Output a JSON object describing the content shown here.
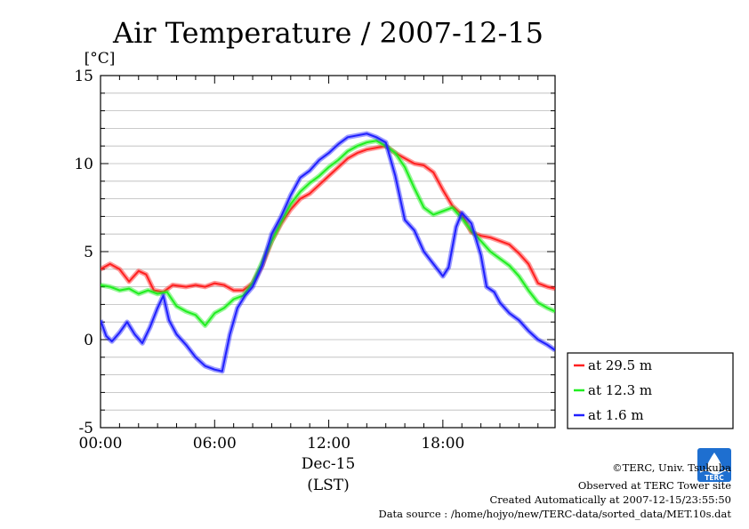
{
  "title": "Air Temperature / 2007-12-15",
  "unit_label": "[°C]",
  "x_date_label": "Dec-15",
  "x_axis_label": "(LST)",
  "logo_text": "TERC",
  "footer": {
    "copyright": "©TERC, Univ. Tsukuba",
    "observed": "Observed at TERC Tower site",
    "created": "Created Automatically at 2007-12-15/23:55:50",
    "source": "Data source : /home/hojyo/new/TERC-data/sorted_data/MET.10s.dat"
  },
  "colors": {
    "red": "#ff2020",
    "green": "#20ee20",
    "blue": "#2020ff",
    "logo": "#1e6fd0"
  },
  "chart_data": {
    "type": "line",
    "title": "Air Temperature / 2007-12-15",
    "ylabel": "[°C]",
    "xlabel": "(LST)",
    "ylim": [
      -5,
      15
    ],
    "xlim": [
      0,
      23.9
    ],
    "grid": true,
    "legend_position": "right, outside plot",
    "x_ticks": [
      {
        "value": 0,
        "label": "00:00"
      },
      {
        "value": 6,
        "label": "06:00"
      },
      {
        "value": 12,
        "label": "12:00"
      },
      {
        "value": 18,
        "label": "18:00"
      }
    ],
    "y_ticks": [
      {
        "value": -5,
        "label": "-5"
      },
      {
        "value": 0,
        "label": "0"
      },
      {
        "value": 5,
        "label": "5"
      },
      {
        "value": 10,
        "label": "10"
      },
      {
        "value": 15,
        "label": "15"
      }
    ],
    "series": [
      {
        "name": "at 29.5 m",
        "color": "#ff2020",
        "points": [
          [
            0,
            4.0
          ],
          [
            0.5,
            4.3
          ],
          [
            1.0,
            4.0
          ],
          [
            1.5,
            3.3
          ],
          [
            2.0,
            3.9
          ],
          [
            2.4,
            3.7
          ],
          [
            2.8,
            2.8
          ],
          [
            3.3,
            2.7
          ],
          [
            3.8,
            3.1
          ],
          [
            4.5,
            3.0
          ],
          [
            5.0,
            3.1
          ],
          [
            5.5,
            3.0
          ],
          [
            6.0,
            3.2
          ],
          [
            6.5,
            3.1
          ],
          [
            7.0,
            2.8
          ],
          [
            7.5,
            2.8
          ],
          [
            8.0,
            3.2
          ],
          [
            8.5,
            4.2
          ],
          [
            9.0,
            5.6
          ],
          [
            9.5,
            6.6
          ],
          [
            10.0,
            7.4
          ],
          [
            10.5,
            8.0
          ],
          [
            11.0,
            8.3
          ],
          [
            11.5,
            8.8
          ],
          [
            12.0,
            9.3
          ],
          [
            12.5,
            9.8
          ],
          [
            13.0,
            10.3
          ],
          [
            13.5,
            10.6
          ],
          [
            14.0,
            10.8
          ],
          [
            14.5,
            10.9
          ],
          [
            15.0,
            11.0
          ],
          [
            15.5,
            10.6
          ],
          [
            16.0,
            10.3
          ],
          [
            16.5,
            10.0
          ],
          [
            17.0,
            9.9
          ],
          [
            17.5,
            9.5
          ],
          [
            18.0,
            8.5
          ],
          [
            18.5,
            7.6
          ],
          [
            19.0,
            7.1
          ],
          [
            19.5,
            6.1
          ],
          [
            20.0,
            5.9
          ],
          [
            20.5,
            5.8
          ],
          [
            21.0,
            5.6
          ],
          [
            21.5,
            5.4
          ],
          [
            22.0,
            4.9
          ],
          [
            22.5,
            4.3
          ],
          [
            23.0,
            3.2
          ],
          [
            23.5,
            3.0
          ],
          [
            23.9,
            2.9
          ]
        ]
      },
      {
        "name": "at 12.3 m",
        "color": "#20ee20",
        "points": [
          [
            0,
            3.1
          ],
          [
            0.5,
            3.0
          ],
          [
            1.0,
            2.8
          ],
          [
            1.5,
            2.9
          ],
          [
            2.0,
            2.6
          ],
          [
            2.5,
            2.8
          ],
          [
            3.0,
            2.6
          ],
          [
            3.5,
            2.7
          ],
          [
            4.0,
            1.9
          ],
          [
            4.5,
            1.6
          ],
          [
            5.0,
            1.4
          ],
          [
            5.5,
            0.8
          ],
          [
            6.0,
            1.5
          ],
          [
            6.5,
            1.8
          ],
          [
            7.0,
            2.3
          ],
          [
            7.5,
            2.5
          ],
          [
            8.0,
            3.2
          ],
          [
            8.5,
            4.4
          ],
          [
            9.0,
            5.6
          ],
          [
            9.5,
            6.7
          ],
          [
            10.0,
            7.7
          ],
          [
            10.5,
            8.4
          ],
          [
            11.0,
            8.9
          ],
          [
            11.5,
            9.3
          ],
          [
            12.0,
            9.8
          ],
          [
            12.5,
            10.2
          ],
          [
            13.0,
            10.7
          ],
          [
            13.5,
            11.0
          ],
          [
            14.0,
            11.2
          ],
          [
            14.5,
            11.3
          ],
          [
            15.0,
            11.0
          ],
          [
            15.5,
            10.6
          ],
          [
            16.0,
            9.8
          ],
          [
            16.5,
            8.6
          ],
          [
            17.0,
            7.5
          ],
          [
            17.5,
            7.1
          ],
          [
            18.0,
            7.3
          ],
          [
            18.5,
            7.5
          ],
          [
            19.0,
            6.9
          ],
          [
            19.5,
            6.2
          ],
          [
            20.0,
            5.6
          ],
          [
            20.5,
            5.0
          ],
          [
            21.0,
            4.6
          ],
          [
            21.5,
            4.2
          ],
          [
            22.0,
            3.6
          ],
          [
            22.5,
            2.8
          ],
          [
            23.0,
            2.1
          ],
          [
            23.5,
            1.8
          ],
          [
            23.9,
            1.6
          ]
        ]
      },
      {
        "name": "at 1.6 m",
        "color": "#2020ff",
        "points": [
          [
            0,
            1.1
          ],
          [
            0.3,
            0.2
          ],
          [
            0.6,
            -0.1
          ],
          [
            1.0,
            0.4
          ],
          [
            1.4,
            1.0
          ],
          [
            1.8,
            0.3
          ],
          [
            2.2,
            -0.2
          ],
          [
            2.6,
            0.7
          ],
          [
            3.0,
            1.8
          ],
          [
            3.3,
            2.5
          ],
          [
            3.6,
            1.1
          ],
          [
            4.0,
            0.3
          ],
          [
            4.5,
            -0.3
          ],
          [
            5.0,
            -1.0
          ],
          [
            5.5,
            -1.5
          ],
          [
            6.0,
            -1.7
          ],
          [
            6.4,
            -1.8
          ],
          [
            6.8,
            0.3
          ],
          [
            7.2,
            1.8
          ],
          [
            7.6,
            2.5
          ],
          [
            8.0,
            3.0
          ],
          [
            8.5,
            4.2
          ],
          [
            9.0,
            6.0
          ],
          [
            9.5,
            7.0
          ],
          [
            10.0,
            8.2
          ],
          [
            10.5,
            9.2
          ],
          [
            11.0,
            9.6
          ],
          [
            11.5,
            10.2
          ],
          [
            12.0,
            10.6
          ],
          [
            12.5,
            11.1
          ],
          [
            13.0,
            11.5
          ],
          [
            13.5,
            11.6
          ],
          [
            14.0,
            11.7
          ],
          [
            14.5,
            11.5
          ],
          [
            15.0,
            11.2
          ],
          [
            15.5,
            9.3
          ],
          [
            16.0,
            6.8
          ],
          [
            16.5,
            6.2
          ],
          [
            17.0,
            5.0
          ],
          [
            17.5,
            4.3
          ],
          [
            18.0,
            3.6
          ],
          [
            18.3,
            4.1
          ],
          [
            18.7,
            6.4
          ],
          [
            19.0,
            7.2
          ],
          [
            19.5,
            6.6
          ],
          [
            20.0,
            4.8
          ],
          [
            20.3,
            3.0
          ],
          [
            20.7,
            2.7
          ],
          [
            21.0,
            2.1
          ],
          [
            21.5,
            1.5
          ],
          [
            22.0,
            1.1
          ],
          [
            22.5,
            0.5
          ],
          [
            23.0,
            0.0
          ],
          [
            23.5,
            -0.3
          ],
          [
            23.9,
            -0.6
          ]
        ]
      }
    ]
  }
}
